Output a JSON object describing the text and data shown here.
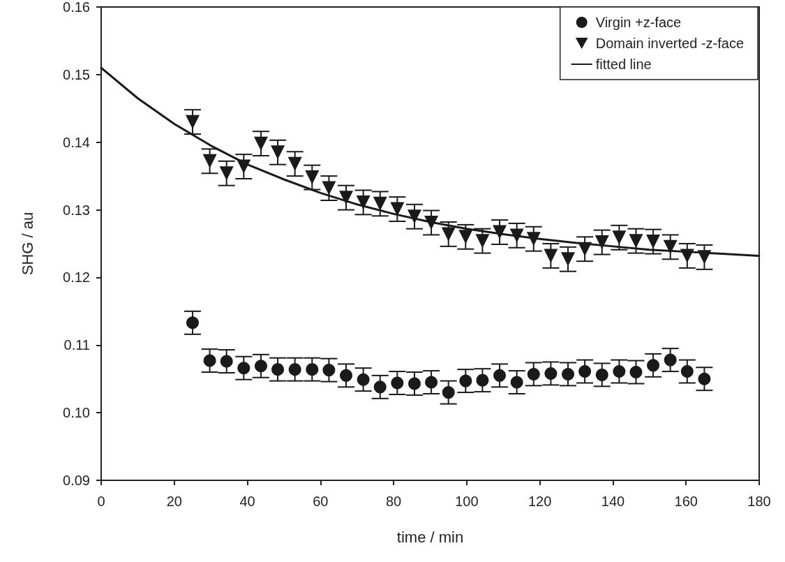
{
  "chart_data": {
    "type": "scatter",
    "xlabel": "time / min",
    "ylabel": "SHG / au",
    "xlim": [
      0,
      180
    ],
    "xticks": [
      0,
      20,
      40,
      60,
      80,
      100,
      120,
      140,
      160,
      180
    ],
    "ylim": [
      0.09,
      0.16
    ],
    "yticks": [
      0.09,
      {
        "value": 0.1,
        "label": "0.10"
      },
      0.11,
      0.12,
      0.13,
      0.14,
      0.15,
      0.16
    ],
    "grid": false,
    "legend": "top right",
    "series": [
      {
        "name": "Virgin +z-face",
        "marker": "circle",
        "color": "#1a1a1a",
        "x": [
          25,
          29.7,
          34.3,
          39,
          43.7,
          48.3,
          53,
          57.7,
          62.3,
          67,
          71.7,
          76.3,
          81,
          85.7,
          90.3,
          95,
          99.7,
          104.3,
          109,
          113.7,
          118.3,
          123,
          127.7,
          132.3,
          137,
          141.7,
          146.3,
          151,
          155.7,
          160.3,
          165
        ],
        "values": [
          0.1133,
          0.1077,
          0.1076,
          0.1066,
          0.1069,
          0.1064,
          0.1064,
          0.1064,
          0.1063,
          0.1055,
          0.1049,
          0.1038,
          0.1044,
          0.1043,
          0.1045,
          0.103,
          0.1047,
          0.1048,
          0.1055,
          0.1045,
          0.1057,
          0.1058,
          0.1057,
          0.1061,
          0.1056,
          0.1061,
          0.106,
          0.107,
          0.1078,
          0.1061,
          0.105
        ],
        "errors": [
          0.0017,
          0.0017,
          0.0017,
          0.0017,
          0.0017,
          0.0017,
          0.0017,
          0.0017,
          0.0017,
          0.0017,
          0.0017,
          0.0017,
          0.0017,
          0.0017,
          0.0017,
          0.0017,
          0.0017,
          0.0017,
          0.0017,
          0.0017,
          0.0017,
          0.0017,
          0.0017,
          0.0017,
          0.0017,
          0.0017,
          0.0017,
          0.0017,
          0.0017,
          0.0017,
          0.0017
        ]
      },
      {
        "name": "Domain inverted -z-face",
        "marker": "triangle",
        "color": "#1a1a1a",
        "x": [
          25,
          29.7,
          34.3,
          39,
          43.7,
          48.3,
          53,
          57.7,
          62.3,
          67,
          71.7,
          76.3,
          81,
          85.7,
          90.3,
          95,
          99.7,
          104.3,
          109,
          113.7,
          118.3,
          123,
          127.7,
          132.3,
          137,
          141.7,
          146.3,
          151,
          155.7,
          160.3,
          165
        ],
        "values": [
          0.143,
          0.1372,
          0.1354,
          0.1364,
          0.1398,
          0.1385,
          0.1368,
          0.1348,
          0.1332,
          0.1318,
          0.1311,
          0.1309,
          0.1301,
          0.129,
          0.1281,
          0.1264,
          0.126,
          0.1254,
          0.1267,
          0.1262,
          0.1257,
          0.1232,
          0.1227,
          0.1242,
          0.1252,
          0.1259,
          0.1254,
          0.1253,
          0.1245,
          0.1232,
          0.123
        ],
        "errors": [
          0.0018,
          0.0018,
          0.0018,
          0.0018,
          0.0018,
          0.0018,
          0.0018,
          0.0018,
          0.0018,
          0.0018,
          0.0018,
          0.0018,
          0.0018,
          0.0018,
          0.0018,
          0.0018,
          0.0018,
          0.0018,
          0.0018,
          0.0018,
          0.0018,
          0.0018,
          0.0018,
          0.0018,
          0.0018,
          0.0018,
          0.0018,
          0.0018,
          0.0018,
          0.0018,
          0.0018
        ]
      },
      {
        "name": "fitted line",
        "type": "line",
        "marker": "none",
        "line_style": "solid",
        "color": "#1a1a1a",
        "x": [
          0,
          10,
          20,
          30,
          40,
          50,
          60,
          70,
          80,
          90,
          100,
          110,
          120,
          130,
          140,
          150,
          160,
          170,
          180
        ],
        "values": [
          0.151,
          0.1465,
          0.1427,
          0.1395,
          0.1367,
          0.1345,
          0.1325,
          0.1308,
          0.1294,
          0.1282,
          0.1272,
          0.1264,
          0.1257,
          0.1251,
          0.1246,
          0.1241,
          0.1238,
          0.1235,
          0.1232
        ]
      }
    ]
  }
}
